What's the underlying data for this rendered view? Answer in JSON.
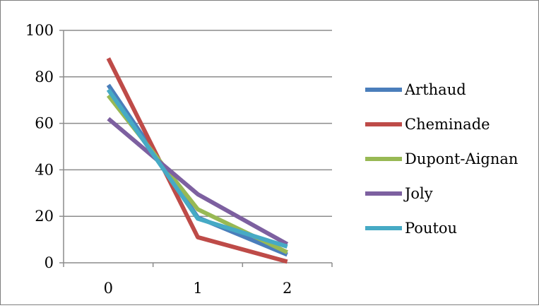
{
  "chart_data": {
    "type": "line",
    "categories": [
      "0",
      "1",
      "2"
    ],
    "series": [
      {
        "name": "Arthaud",
        "color": "#4a7ebb",
        "values": [
          76.5,
          19.5,
          3.5
        ]
      },
      {
        "name": "Cheminade",
        "color": "#be4b48",
        "values": [
          88,
          11,
          0.5
        ]
      },
      {
        "name": "Dupont-Aignan",
        "color": "#98b954",
        "values": [
          72,
          23,
          4.5
        ]
      },
      {
        "name": "Joly",
        "color": "#7d60a0",
        "values": [
          62,
          29.5,
          8
        ]
      },
      {
        "name": "Poutou",
        "color": "#46aac5",
        "values": [
          74.5,
          19,
          7
        ]
      }
    ],
    "y_ticks": [
      "0",
      "20",
      "40",
      "60",
      "80",
      "100"
    ],
    "ylim": [
      0,
      100
    ],
    "grid": true,
    "legend_position": "right"
  }
}
